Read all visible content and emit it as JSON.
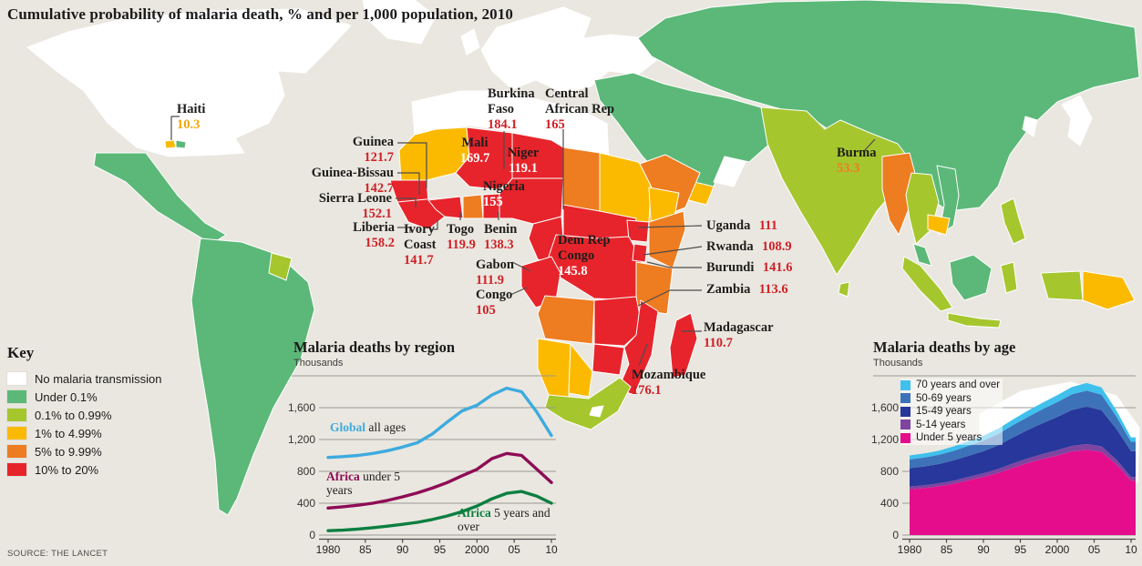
{
  "title": "Cumulative probability of malaria death, % and per 1,000 population, 2010",
  "source": "SOURCE: THE LANCET",
  "key": {
    "title": "Key",
    "items": [
      {
        "label": "No malaria transmission",
        "color": "#ffffff"
      },
      {
        "label": "Under 0.1%",
        "color": "#5cb878"
      },
      {
        "label": "0.1% to 0.99%",
        "color": "#a6c62e"
      },
      {
        "label": "1% to 4.99%",
        "color": "#fbba00"
      },
      {
        "label": "5% to 9.99%",
        "color": "#ee7c20"
      },
      {
        "label": "10% to 20%",
        "color": "#e7242b"
      }
    ]
  },
  "map": {
    "callouts": [
      {
        "name": "Haiti",
        "value": "10.3",
        "value_color": "#f0a802"
      },
      {
        "name": "Guinea",
        "value": "121.7",
        "value_color": "#cf2127"
      },
      {
        "name": "Guinea-Bissau",
        "value": "142.7",
        "value_color": "#cf2127"
      },
      {
        "name": "Sierra Leone",
        "value": "152.1",
        "value_color": "#cf2127"
      },
      {
        "name": "Liberia",
        "value": "158.2",
        "value_color": "#cf2127"
      },
      {
        "name": "Ivory Coast",
        "value": "141.7",
        "value_color": "#cf2127"
      },
      {
        "name": "Togo",
        "value": "119.9",
        "value_color": "#cf2127"
      },
      {
        "name": "Benin",
        "value": "138.3",
        "value_color": "#cf2127"
      },
      {
        "name": "Burkina Faso",
        "value": "184.1",
        "value_color": "#cf2127"
      },
      {
        "name": "Central African Rep",
        "value": "165",
        "value_color": "#cf2127"
      },
      {
        "name": "Mali",
        "value": "169.7",
        "value_color": "#ffffff"
      },
      {
        "name": "Niger",
        "value": "119.1",
        "value_color": "#ffffff"
      },
      {
        "name": "Nigeria",
        "value": "155",
        "value_color": "#ffffff"
      },
      {
        "name": "Dem Rep Congo",
        "value": "145.8",
        "value_color": "#ffffff"
      },
      {
        "name": "Gabon",
        "value": "111.9",
        "value_color": "#cf2127"
      },
      {
        "name": "Congo",
        "value": "105",
        "value_color": "#cf2127"
      },
      {
        "name": "Uganda",
        "value": "111",
        "value_color": "#cf2127"
      },
      {
        "name": "Rwanda",
        "value": "108.9",
        "value_color": "#cf2127"
      },
      {
        "name": "Burundi",
        "value": "141.6",
        "value_color": "#cf2127"
      },
      {
        "name": "Zambia",
        "value": "113.6",
        "value_color": "#cf2127"
      },
      {
        "name": "Madagascar",
        "value": "110.7",
        "value_color": "#cf2127"
      },
      {
        "name": "Mozambique",
        "value": "176.1",
        "value_color": "#cf2127"
      },
      {
        "name": "Burma",
        "value": "53.3",
        "value_color": "#ed7d23"
      }
    ]
  },
  "chart_data": [
    {
      "type": "line",
      "title": "Malaria deaths by region",
      "units_label": "Thousands",
      "ylim": [
        0,
        2000
      ],
      "grid": true,
      "top_gridline_value": 2000,
      "yticks": {
        "values": [
          1600,
          1200,
          800,
          400,
          0
        ],
        "labels": [
          "1,600",
          "1,200",
          "800",
          "400",
          "0"
        ]
      },
      "x": [
        1980,
        1982,
        1984,
        1986,
        1988,
        1990,
        1992,
        1994,
        1996,
        1998,
        2000,
        2002,
        2004,
        2006,
        2008,
        2010
      ],
      "xticks": {
        "values": [
          1980,
          1985,
          1990,
          1995,
          2000,
          2005,
          2010
        ],
        "labels": [
          "1980",
          "85",
          "90",
          "95",
          "2000",
          "05",
          "10"
        ]
      },
      "series": [
        {
          "name": "Global all ages",
          "label_strong": "Global",
          "label_rest": " all ages",
          "color": "#3dabde",
          "values": [
            975,
            985,
            1000,
            1025,
            1060,
            1105,
            1160,
            1270,
            1420,
            1560,
            1630,
            1760,
            1845,
            1800,
            1550,
            1250
          ]
        },
        {
          "name": "Africa under 5 years",
          "label_strong": "Africa",
          "label_rest": " under 5 years",
          "color": "#8e0c55",
          "values": [
            340,
            355,
            375,
            400,
            435,
            480,
            530,
            590,
            660,
            745,
            825,
            960,
            1025,
            1000,
            830,
            660
          ]
        },
        {
          "name": "Africa 5 years and over",
          "label_strong": "Africa",
          "label_rest": " 5 years and over",
          "color": "#0b7f40",
          "values": [
            55,
            62,
            75,
            92,
            112,
            135,
            160,
            195,
            240,
            295,
            365,
            455,
            525,
            548,
            490,
            400
          ]
        }
      ]
    },
    {
      "type": "area",
      "title": "Malaria deaths by age",
      "units_label": "Thousands",
      "ylim": [
        0,
        2000
      ],
      "grid": true,
      "top_gridline_value": 2000,
      "legend_position": "top-left",
      "yticks": {
        "values": [
          1600,
          1200,
          800,
          400,
          0
        ],
        "labels": [
          "1,600",
          "1,200",
          "800",
          "400",
          "0"
        ]
      },
      "x": [
        1980,
        1982,
        1984,
        1986,
        1988,
        1990,
        1992,
        1994,
        1996,
        1998,
        2000,
        2002,
        2004,
        2006,
        2008,
        2010
      ],
      "xticks": {
        "values": [
          1980,
          1985,
          1990,
          1995,
          2000,
          2005,
          2010
        ],
        "labels": [
          "1980",
          "85",
          "90",
          "95",
          "2000",
          "05",
          "10"
        ]
      },
      "series": [
        {
          "name": "70 years and over",
          "color": "#3fc0ed",
          "values": [
            50,
            51,
            53,
            56,
            59,
            62,
            67,
            72,
            77,
            82,
            87,
            92,
            95,
            91,
            75,
            55
          ]
        },
        {
          "name": "50-69 years",
          "color": "#3d72b8",
          "values": [
            110,
            112,
            115,
            120,
            126,
            133,
            142,
            153,
            164,
            175,
            186,
            196,
            202,
            195,
            158,
            117
          ]
        },
        {
          "name": "15-49 years",
          "color": "#27379b",
          "values": [
            230,
            236,
            243,
            253,
            264,
            277,
            297,
            327,
            357,
            388,
            418,
            452,
            470,
            452,
            385,
            325
          ]
        },
        {
          "name": "5-14 years",
          "color": "#7f44a0",
          "values": [
            35,
            36,
            38,
            40,
            43,
            46,
            50,
            54,
            58,
            62,
            66,
            70,
            73,
            71,
            59,
            45
          ]
        },
        {
          "name": "Under 5 years",
          "color": "#e50d8c",
          "values": [
            575,
            590,
            612,
            645,
            688,
            730,
            780,
            845,
            905,
            955,
            1000,
            1050,
            1070,
            1045,
            890,
            685
          ]
        }
      ]
    }
  ]
}
